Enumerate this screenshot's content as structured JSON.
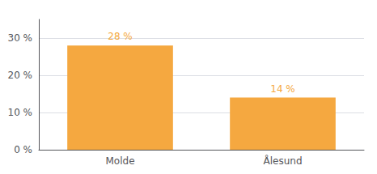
{
  "chart_data": {
    "type": "bar",
    "categories": [
      "Molde",
      "Ålesund"
    ],
    "values": [
      28,
      14
    ],
    "value_labels": [
      "28 %",
      "14 %"
    ],
    "color": "#f5a840",
    "ylim": [
      0,
      35
    ],
    "yticks": [
      {
        "value": 0,
        "label": "0 %"
      },
      {
        "value": 10,
        "label": "10 %"
      },
      {
        "value": 20,
        "label": "20 %"
      },
      {
        "value": 30,
        "label": "30 %"
      }
    ],
    "grid": true,
    "data_labels": true
  }
}
